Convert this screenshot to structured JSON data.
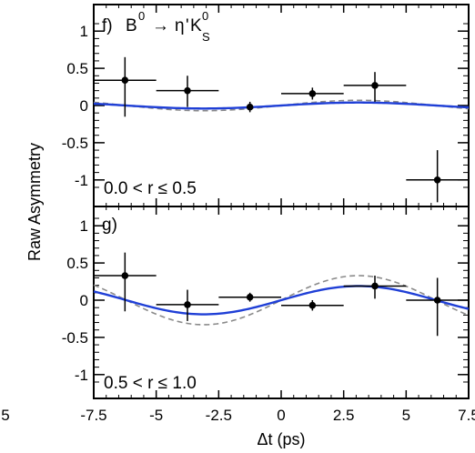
{
  "chart_data": [
    {
      "type": "scatter",
      "panel_label": "f)",
      "title_parts": {
        "b": "B",
        "b_sup": "0",
        "arrow": "→",
        "eta": "η",
        "prime": "'",
        "k": "K",
        "k_sup": "0",
        "k_sub": "S"
      },
      "range_label": "0.0 < r ≤ 0.5",
      "ylabel": "Raw Asymmetry",
      "xlim": [
        -7.5,
        7.5
      ],
      "ylim": [
        -1.2,
        1.2
      ],
      "yticks": [
        "-1",
        "-0.5",
        "0",
        "0.5",
        "1"
      ],
      "points": [
        {
          "x": -6.25,
          "y": 0.34,
          "xerr": 1.25,
          "yerr_lo": 0.49,
          "yerr_hi": 0.31
        },
        {
          "x": -3.75,
          "y": 0.2,
          "xerr": 1.25,
          "yerr_lo": 0.22,
          "yerr_hi": 0.2
        },
        {
          "x": -1.25,
          "y": -0.02,
          "xerr": 0.0,
          "yerr_lo": 0.07,
          "yerr_hi": 0.07
        },
        {
          "x": 1.25,
          "y": 0.16,
          "xerr": 1.25,
          "yerr_lo": 0.08,
          "yerr_hi": 0.08
        },
        {
          "x": 3.75,
          "y": 0.27,
          "xerr": 1.25,
          "yerr_lo": 0.22,
          "yerr_hi": 0.18
        },
        {
          "x": 6.25,
          "y": -1.0,
          "xerr": 1.25,
          "yerr_lo": 0.3,
          "yerr_hi": 0.4
        }
      ],
      "curves": {
        "fit": {
          "color": "#1f3fd6",
          "style": "solid",
          "amplitude": 0.04,
          "offset": 0.0
        },
        "expected": {
          "color": "#8a8a8a",
          "style": "dashed",
          "amplitude": 0.07,
          "offset": 0.0
        }
      },
      "grid": false
    },
    {
      "type": "scatter",
      "panel_label": "g)",
      "range_label": "0.5 < r ≤ 1.0",
      "xlabel": "Δt (ps)",
      "xlim": [
        -7.5,
        7.5
      ],
      "ylim": [
        -1.2,
        1.2
      ],
      "xticks": [
        "-7.5",
        "-5",
        "-2.5",
        "0",
        "2.5",
        "5",
        "7.5"
      ],
      "yticks": [
        "-1",
        "-0.5",
        "0",
        "0.5",
        "1"
      ],
      "points": [
        {
          "x": -6.25,
          "y": 0.33,
          "xerr": 1.25,
          "yerr_lo": 0.48,
          "yerr_hi": 0.31
        },
        {
          "x": -3.75,
          "y": -0.06,
          "xerr": 1.25,
          "yerr_lo": 0.22,
          "yerr_hi": 0.2
        },
        {
          "x": -1.25,
          "y": 0.04,
          "xerr": 1.25,
          "yerr_lo": 0.06,
          "yerr_hi": 0.06
        },
        {
          "x": 1.25,
          "y": -0.07,
          "xerr": 1.25,
          "yerr_lo": 0.07,
          "yerr_hi": 0.07
        },
        {
          "x": 3.75,
          "y": 0.19,
          "xerr": 1.25,
          "yerr_lo": 0.17,
          "yerr_hi": 0.14
        },
        {
          "x": 6.25,
          "y": 0.0,
          "xerr": 1.25,
          "yerr_lo": 0.48,
          "yerr_hi": 0.3
        }
      ],
      "curves": {
        "fit": {
          "color": "#1f3fd6",
          "style": "solid",
          "amplitude": 0.19,
          "offset": 0.0
        },
        "expected": {
          "color": "#8a8a8a",
          "style": "dashed",
          "amplitude": 0.33,
          "offset": 0.0
        }
      },
      "grid": false
    }
  ],
  "edge_tick_label": "5"
}
